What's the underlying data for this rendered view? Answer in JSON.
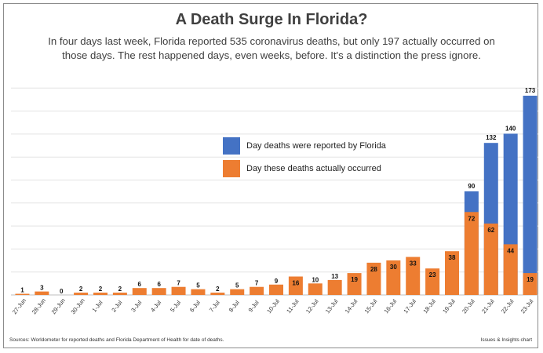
{
  "chart_data": {
    "type": "bar",
    "title": "A Death Surge In Florida?",
    "subtitle": "In four days last week, Florida reported 535 coronavirus deaths, but only 197 actually occurred on those days. The rest happened days, even weeks, before. It's a distinction the press ignore.",
    "categories": [
      "27-Jun",
      "28-Jun",
      "29-Jun",
      "30-Jun",
      "1-Jul",
      "2-Jul",
      "3-Jul",
      "4-Jul",
      "5-Jul",
      "6-Jul",
      "7-Jul",
      "8-Jul",
      "9-Jul",
      "10-Jul",
      "11-Jul",
      "12-Jul",
      "13-Jul",
      "14-Jul",
      "15-Jul",
      "16-Jul",
      "17-Jul",
      "18-Jul",
      "19-Jul",
      "20-Jul",
      "21-Jul",
      "22-Jul",
      "23-Jul"
    ],
    "series": [
      {
        "name": "Day deaths were reported by Florida",
        "color": "#4472C4",
        "values": [
          null,
          null,
          null,
          null,
          null,
          null,
          null,
          null,
          null,
          null,
          null,
          null,
          null,
          null,
          null,
          null,
          null,
          null,
          null,
          null,
          null,
          null,
          null,
          90,
          132,
          140,
          173
        ]
      },
      {
        "name": "Day these deaths actually occurred",
        "color": "#ED7D31",
        "values": [
          1,
          3,
          0,
          2,
          2,
          2,
          6,
          6,
          7,
          5,
          2,
          5,
          7,
          9,
          16,
          10,
          13,
          19,
          28,
          30,
          33,
          23,
          38,
          72,
          62,
          44,
          19
        ]
      }
    ],
    "ylim": [
      0,
      180
    ],
    "grid": true,
    "legend_position": "center-right",
    "xlabel": "",
    "ylabel": ""
  },
  "footer": {
    "source": "Sources: Worldometer for reported deaths and Florida Department of Health for date of deaths.",
    "credit": "Issues & Insights chart"
  }
}
